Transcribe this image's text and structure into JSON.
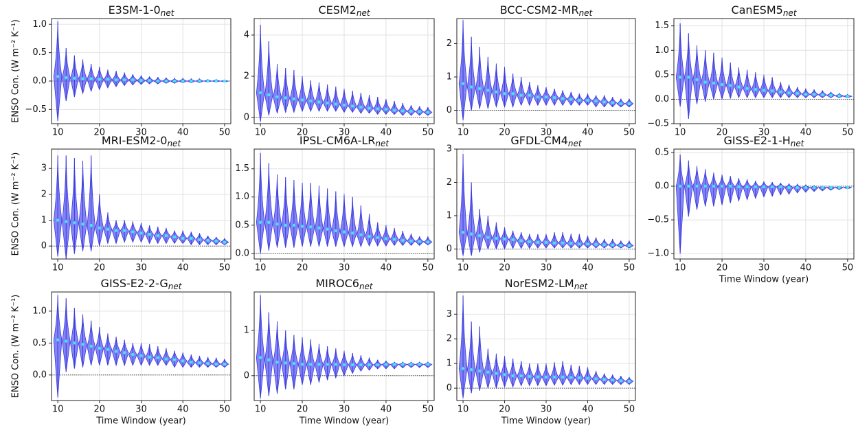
{
  "chart_data": [
    {
      "type": "violin",
      "title": "E3SM-1-0",
      "title_subscript": "net",
      "ylabel": "ENSO Con. (W m⁻² K⁻¹)",
      "x": [
        10,
        12,
        14,
        16,
        18,
        20,
        22,
        24,
        26,
        28,
        30,
        32,
        34,
        36,
        38,
        40,
        42,
        44,
        46,
        48,
        50
      ],
      "median": [
        0.08,
        0.06,
        0.05,
        0.04,
        0.04,
        0.03,
        0.03,
        0.02,
        0.02,
        0.02,
        0.01,
        0.01,
        0.0,
        0.0,
        0.0,
        0.0,
        0.0,
        0.0,
        0.0,
        0.0,
        0.0
      ],
      "min": [
        -0.7,
        -0.35,
        -0.28,
        -0.22,
        -0.18,
        -0.15,
        -0.12,
        -0.1,
        -0.08,
        -0.07,
        -0.06,
        -0.05,
        -0.05,
        -0.04,
        -0.04,
        -0.03,
        -0.03,
        -0.03,
        -0.02,
        -0.02,
        -0.02
      ],
      "max": [
        1.05,
        0.58,
        0.45,
        0.38,
        0.3,
        0.25,
        0.2,
        0.18,
        0.15,
        0.12,
        0.1,
        0.08,
        0.07,
        0.06,
        0.05,
        0.05,
        0.04,
        0.04,
        0.03,
        0.03,
        0.02
      ],
      "xlim": [
        8.5,
        51.5
      ],
      "xticks": [
        10,
        20,
        30,
        40,
        50
      ],
      "ylim": [
        -0.75,
        1.1
      ],
      "yticks": [
        {
          "value": -0.5,
          "label": "−0.5"
        },
        {
          "value": 0,
          "label": "0.0"
        },
        0.5,
        {
          "value": 1,
          "label": "1.0"
        }
      ],
      "reference_line": 0,
      "grid": true,
      "color": "#5b5bf0",
      "median_color": "#3ee8f5"
    },
    {
      "type": "violin",
      "title": "CESM2",
      "title_subscript": "net",
      "x": [
        10,
        12,
        14,
        16,
        18,
        20,
        22,
        24,
        26,
        28,
        30,
        32,
        34,
        36,
        38,
        40,
        42,
        44,
        46,
        48,
        50
      ],
      "median": [
        1.2,
        1.1,
        1.0,
        0.95,
        0.9,
        0.85,
        0.8,
        0.75,
        0.7,
        0.65,
        0.6,
        0.55,
        0.5,
        0.45,
        0.42,
        0.4,
        0.35,
        0.32,
        0.3,
        0.28,
        0.25
      ],
      "min": [
        -0.2,
        0.1,
        0.2,
        0.25,
        0.25,
        0.3,
        0.3,
        0.3,
        0.3,
        0.3,
        0.25,
        0.25,
        0.2,
        0.2,
        0.15,
        0.15,
        0.15,
        0.1,
        0.1,
        0.1,
        0.1
      ],
      "max": [
        4.5,
        3.7,
        2.6,
        2.4,
        2.3,
        2.0,
        1.8,
        1.7,
        1.6,
        1.5,
        1.4,
        1.3,
        1.2,
        1.1,
        1.0,
        0.9,
        0.8,
        0.7,
        0.6,
        0.55,
        0.5
      ],
      "xlim": [
        8.5,
        51.5
      ],
      "xticks": [
        10,
        20,
        30,
        40,
        50
      ],
      "ylim": [
        -0.3,
        4.8
      ],
      "yticks": [
        0,
        2,
        4
      ],
      "reference_line": 0,
      "grid": true,
      "color": "#5b5bf0",
      "median_color": "#3ee8f5"
    },
    {
      "type": "violin",
      "title": "BCC-CSM2-MR",
      "title_subscript": "net",
      "x": [
        10,
        12,
        14,
        16,
        18,
        20,
        22,
        24,
        26,
        28,
        30,
        32,
        34,
        36,
        38,
        40,
        42,
        44,
        46,
        48,
        50
      ],
      "median": [
        0.8,
        0.7,
        0.65,
        0.6,
        0.55,
        0.5,
        0.5,
        0.45,
        0.45,
        0.4,
        0.4,
        0.38,
        0.35,
        0.33,
        0.3,
        0.3,
        0.28,
        0.25,
        0.23,
        0.2,
        0.2
      ],
      "min": [
        -0.3,
        0.0,
        0.05,
        0.05,
        0.1,
        0.1,
        0.1,
        0.15,
        0.15,
        0.15,
        0.15,
        0.15,
        0.15,
        0.15,
        0.15,
        0.15,
        0.1,
        0.1,
        0.1,
        0.1,
        0.1
      ],
      "max": [
        2.7,
        2.2,
        1.9,
        1.6,
        1.4,
        1.3,
        1.1,
        1.0,
        0.85,
        0.75,
        0.7,
        0.65,
        0.6,
        0.55,
        0.5,
        0.5,
        0.45,
        0.45,
        0.4,
        0.35,
        0.35
      ],
      "xlim": [
        8.5,
        51.5
      ],
      "xticks": [
        10,
        20,
        30,
        40,
        50
      ],
      "ylim": [
        -0.4,
        2.75
      ],
      "yticks": [
        0,
        1,
        2
      ],
      "reference_line": 0,
      "grid": true,
      "color": "#5b5bf0",
      "median_color": "#3ee8f5"
    },
    {
      "type": "violin",
      "title": "CanESM5",
      "title_subscript": "net",
      "x": [
        10,
        12,
        14,
        16,
        18,
        20,
        22,
        24,
        26,
        28,
        30,
        32,
        34,
        36,
        38,
        40,
        42,
        44,
        46,
        48,
        50
      ],
      "median": [
        0.45,
        0.45,
        0.4,
        0.35,
        0.33,
        0.3,
        0.28,
        0.25,
        0.22,
        0.2,
        0.18,
        0.17,
        0.15,
        0.13,
        0.12,
        0.1,
        0.1,
        0.09,
        0.08,
        0.07,
        0.06
      ],
      "min": [
        -0.15,
        -0.4,
        -0.1,
        -0.05,
        0.0,
        0.0,
        0.02,
        0.03,
        0.03,
        0.03,
        0.03,
        0.03,
        0.03,
        0.03,
        0.03,
        0.03,
        0.03,
        0.03,
        0.03,
        0.03,
        0.03
      ],
      "max": [
        1.55,
        1.35,
        1.1,
        1.0,
        0.95,
        0.85,
        0.75,
        0.65,
        0.6,
        0.55,
        0.5,
        0.45,
        0.35,
        0.3,
        0.25,
        0.22,
        0.2,
        0.18,
        0.15,
        0.12,
        0.1
      ],
      "xlim": [
        8.5,
        51.5
      ],
      "xticks": [
        10,
        20,
        30,
        40,
        50
      ],
      "ylim": [
        -0.5,
        1.65
      ],
      "yticks": [
        {
          "value": -0.5,
          "label": "−0.5"
        },
        {
          "value": 0,
          "label": "0.0"
        },
        0.5,
        {
          "value": 1,
          "label": "1.0"
        },
        1.5
      ],
      "reference_line": 0,
      "grid": true,
      "color": "#5b5bf0",
      "median_color": "#3ee8f5"
    },
    {
      "type": "violin",
      "title": "MRI-ESM2-0",
      "title_subscript": "net",
      "ylabel": "ENSO Con. (W m⁻² K⁻¹)",
      "x": [
        10,
        12,
        14,
        16,
        18,
        20,
        22,
        24,
        26,
        28,
        30,
        32,
        34,
        36,
        38,
        40,
        42,
        44,
        46,
        48,
        50
      ],
      "median": [
        1.0,
        0.95,
        0.9,
        0.85,
        0.8,
        0.7,
        0.65,
        0.6,
        0.6,
        0.55,
        0.5,
        0.45,
        0.4,
        0.4,
        0.35,
        0.3,
        0.3,
        0.25,
        0.22,
        0.2,
        0.15
      ],
      "min": [
        -0.4,
        -0.5,
        -0.3,
        -0.2,
        -0.2,
        0.0,
        0.1,
        0.1,
        0.15,
        0.15,
        0.15,
        0.1,
        0.1,
        0.1,
        0.1,
        0.1,
        0.05,
        0.05,
        0.05,
        0.05,
        0.05
      ],
      "max": [
        3.5,
        3.5,
        3.4,
        3.3,
        3.5,
        2.0,
        1.3,
        1.0,
        1.0,
        0.95,
        0.9,
        0.8,
        0.75,
        0.7,
        0.6,
        0.6,
        0.55,
        0.5,
        0.4,
        0.35,
        0.3
      ],
      "xlim": [
        8.5,
        51.5
      ],
      "xticks": [
        10,
        20,
        30,
        40,
        50
      ],
      "ylim": [
        -0.5,
        3.75
      ],
      "yticks": [
        0,
        1,
        2,
        3
      ],
      "reference_line": 0,
      "grid": true,
      "color": "#5b5bf0",
      "median_color": "#3ee8f5"
    },
    {
      "type": "violin",
      "title": "IPSL-CM6A-LR",
      "title_subscript": "net",
      "x": [
        10,
        12,
        14,
        16,
        18,
        20,
        22,
        24,
        26,
        28,
        30,
        32,
        34,
        36,
        38,
        40,
        42,
        44,
        46,
        48,
        50
      ],
      "median": [
        0.55,
        0.55,
        0.52,
        0.5,
        0.5,
        0.48,
        0.47,
        0.45,
        0.43,
        0.4,
        0.38,
        0.36,
        0.33,
        0.3,
        0.28,
        0.26,
        0.25,
        0.23,
        0.22,
        0.21,
        0.2
      ],
      "min": [
        0.0,
        0.05,
        0.1,
        0.1,
        0.1,
        0.12,
        0.12,
        0.12,
        0.12,
        0.12,
        0.12,
        0.12,
        0.12,
        0.13,
        0.13,
        0.13,
        0.14,
        0.14,
        0.14,
        0.14,
        0.15
      ],
      "max": [
        1.78,
        1.6,
        1.4,
        1.35,
        1.3,
        1.25,
        1.25,
        1.2,
        1.15,
        1.1,
        1.05,
        1.0,
        0.85,
        0.7,
        0.55,
        0.5,
        0.45,
        0.4,
        0.35,
        0.3,
        0.3
      ],
      "xlim": [
        8.5,
        51.5
      ],
      "xticks": [
        10,
        20,
        30,
        40,
        50
      ],
      "ylim": [
        -0.1,
        1.85
      ],
      "yticks": [
        {
          "value": 0,
          "label": "0.0"
        },
        0.5,
        {
          "value": 1,
          "label": "1.0"
        },
        1.5
      ],
      "reference_line": 0,
      "grid": true,
      "color": "#5b5bf0",
      "median_color": "#3ee8f5"
    },
    {
      "type": "violin",
      "title": "GFDL-CM4",
      "title_subscript": "net",
      "x": [
        10,
        12,
        14,
        16,
        18,
        20,
        22,
        24,
        26,
        28,
        30,
        32,
        34,
        36,
        38,
        40,
        42,
        44,
        46,
        48,
        50
      ],
      "median": [
        0.5,
        0.45,
        0.4,
        0.35,
        0.32,
        0.3,
        0.28,
        0.25,
        0.22,
        0.2,
        0.2,
        0.18,
        0.18,
        0.17,
        0.15,
        0.15,
        0.14,
        0.13,
        0.12,
        0.11,
        0.1
      ],
      "min": [
        -0.2,
        -0.2,
        -0.1,
        0.0,
        0.0,
        0.0,
        0.02,
        0.02,
        0.02,
        0.03,
        0.03,
        0.03,
        0.03,
        0.03,
        0.03,
        0.03,
        0.03,
        0.03,
        0.03,
        0.03,
        0.03
      ],
      "max": [
        2.85,
        2.0,
        1.2,
        1.0,
        0.8,
        0.65,
        0.55,
        0.5,
        0.45,
        0.45,
        0.45,
        0.5,
        0.5,
        0.45,
        0.45,
        0.4,
        0.35,
        0.3,
        0.3,
        0.25,
        0.25
      ],
      "xlim": [
        8.5,
        51.5
      ],
      "xticks": [
        10,
        20,
        30,
        40,
        50
      ],
      "ylim": [
        -0.3,
        3.0
      ],
      "yticks": [
        0,
        1,
        2,
        3
      ],
      "reference_line": 0,
      "grid": true,
      "color": "#5b5bf0",
      "median_color": "#3ee8f5"
    },
    {
      "type": "violin",
      "title": "GISS-E2-1-H",
      "title_subscript": "net",
      "xlabel": "Time Window (year)",
      "x": [
        10,
        12,
        14,
        16,
        18,
        20,
        22,
        24,
        26,
        28,
        30,
        32,
        34,
        36,
        38,
        40,
        42,
        44,
        46,
        48,
        50
      ],
      "median": [
        0.0,
        0.0,
        0.0,
        0.0,
        0.0,
        0.0,
        0.0,
        -0.01,
        -0.01,
        -0.01,
        -0.01,
        -0.01,
        -0.01,
        -0.02,
        -0.02,
        -0.02,
        -0.02,
        -0.02,
        -0.02,
        -0.02,
        -0.02
      ],
      "min": [
        -1.0,
        -0.45,
        -0.35,
        -0.3,
        -0.3,
        -0.28,
        -0.25,
        -0.22,
        -0.2,
        -0.18,
        -0.16,
        -0.15,
        -0.13,
        -0.12,
        -0.1,
        -0.09,
        -0.08,
        -0.07,
        -0.06,
        -0.05,
        -0.04
      ],
      "max": [
        0.47,
        0.38,
        0.3,
        0.25,
        0.2,
        0.17,
        0.15,
        0.12,
        0.1,
        0.08,
        0.07,
        0.06,
        0.05,
        0.04,
        0.03,
        0.02,
        0.01,
        0.0,
        0.0,
        0.0,
        0.0
      ],
      "xlim": [
        8.5,
        51.5
      ],
      "xticks": [
        10,
        20,
        30,
        40,
        50
      ],
      "ylim": [
        -1.08,
        0.55
      ],
      "yticks": [
        {
          "value": -1,
          "label": "−1.0"
        },
        {
          "value": -0.5,
          "label": "−0.5"
        },
        {
          "value": 0,
          "label": "0.0"
        },
        0.5
      ],
      "reference_line": 0,
      "grid": true,
      "color": "#5b5bf0",
      "median_color": "#3ee8f5"
    },
    {
      "type": "violin",
      "title": "GISS-E2-2-G",
      "title_subscript": "net",
      "ylabel": "ENSO Con. (W m⁻² K⁻¹)",
      "xlabel": "Time Window (year)",
      "x": [
        10,
        12,
        14,
        16,
        18,
        20,
        22,
        24,
        26,
        28,
        30,
        32,
        34,
        36,
        38,
        40,
        42,
        44,
        46,
        48,
        50
      ],
      "median": [
        0.55,
        0.53,
        0.5,
        0.48,
        0.45,
        0.42,
        0.4,
        0.37,
        0.35,
        0.32,
        0.3,
        0.28,
        0.27,
        0.25,
        0.24,
        0.22,
        0.2,
        0.19,
        0.18,
        0.17,
        0.17
      ],
      "min": [
        -0.35,
        0.05,
        0.1,
        0.12,
        0.15,
        0.15,
        0.15,
        0.15,
        0.15,
        0.15,
        0.15,
        0.15,
        0.15,
        0.15,
        0.12,
        0.12,
        0.12,
        0.12,
        0.12,
        0.12,
        0.12
      ],
      "max": [
        1.25,
        1.2,
        1.05,
        0.95,
        0.85,
        0.75,
        0.65,
        0.6,
        0.55,
        0.5,
        0.5,
        0.48,
        0.45,
        0.42,
        0.38,
        0.35,
        0.32,
        0.3,
        0.28,
        0.27,
        0.25
      ],
      "xlim": [
        8.5,
        51.5
      ],
      "xticks": [
        10,
        20,
        30,
        40,
        50
      ],
      "ylim": [
        -0.4,
        1.3
      ],
      "yticks": [
        {
          "value": 0,
          "label": "0.0"
        },
        0.5,
        {
          "value": 1,
          "label": "1.0"
        }
      ],
      "reference_line": 0,
      "grid": true,
      "color": "#5b5bf0",
      "median_color": "#3ee8f5"
    },
    {
      "type": "violin",
      "title": "MIROC6",
      "title_subscript": "net",
      "xlabel": "Time Window (year)",
      "x": [
        10,
        12,
        14,
        16,
        18,
        20,
        22,
        24,
        26,
        28,
        30,
        32,
        34,
        36,
        38,
        40,
        42,
        44,
        46,
        48,
        50
      ],
      "median": [
        0.4,
        0.35,
        0.3,
        0.28,
        0.27,
        0.25,
        0.25,
        0.25,
        0.25,
        0.25,
        0.24,
        0.24,
        0.24,
        0.24,
        0.24,
        0.25,
        0.25,
        0.25,
        0.25,
        0.25,
        0.25
      ],
      "min": [
        -0.5,
        -0.45,
        -0.4,
        -0.3,
        -0.3,
        -0.2,
        -0.2,
        -0.15,
        -0.1,
        -0.05,
        0.0,
        0.05,
        0.1,
        0.12,
        0.15,
        0.15,
        0.15,
        0.17,
        0.18,
        0.18,
        0.18
      ],
      "max": [
        1.78,
        1.4,
        1.2,
        1.0,
        0.9,
        0.85,
        0.8,
        0.7,
        0.65,
        0.6,
        0.55,
        0.5,
        0.45,
        0.4,
        0.35,
        0.33,
        0.3,
        0.3,
        0.3,
        0.3,
        0.3
      ],
      "xlim": [
        8.5,
        51.5
      ],
      "xticks": [
        10,
        20,
        30,
        40,
        50
      ],
      "ylim": [
        -0.55,
        1.85
      ],
      "yticks": [
        0,
        1
      ],
      "reference_line": 0,
      "grid": true,
      "color": "#5b5bf0",
      "median_color": "#3ee8f5"
    },
    {
      "type": "violin",
      "title": "NorESM2-LM",
      "title_subscript": "net",
      "xlabel": "Time Window (year)",
      "x": [
        10,
        12,
        14,
        16,
        18,
        20,
        22,
        24,
        26,
        28,
        30,
        32,
        34,
        36,
        38,
        40,
        42,
        44,
        46,
        48,
        50
      ],
      "median": [
        0.8,
        0.75,
        0.7,
        0.65,
        0.6,
        0.55,
        0.5,
        0.5,
        0.48,
        0.46,
        0.45,
        0.45,
        0.45,
        0.43,
        0.42,
        0.4,
        0.38,
        0.35,
        0.33,
        0.3,
        0.28
      ],
      "min": [
        -0.4,
        -0.2,
        -0.1,
        0.0,
        0.0,
        0.05,
        0.05,
        0.1,
        0.1,
        0.1,
        0.1,
        0.12,
        0.12,
        0.15,
        0.15,
        0.15,
        0.15,
        0.15,
        0.15,
        0.15,
        0.15
      ],
      "max": [
        3.75,
        2.7,
        2.5,
        1.6,
        1.4,
        1.3,
        1.2,
        1.1,
        1.0,
        1.0,
        1.0,
        1.05,
        1.1,
        0.95,
        0.9,
        0.85,
        0.7,
        0.6,
        0.55,
        0.5,
        0.45
      ],
      "xlim": [
        8.5,
        51.5
      ],
      "xticks": [
        10,
        20,
        30,
        40,
        50
      ],
      "ylim": [
        -0.5,
        3.9
      ],
      "yticks": [
        0,
        1,
        2,
        3
      ],
      "reference_line": 0,
      "grid": true,
      "color": "#5b5bf0",
      "median_color": "#3ee8f5"
    }
  ]
}
